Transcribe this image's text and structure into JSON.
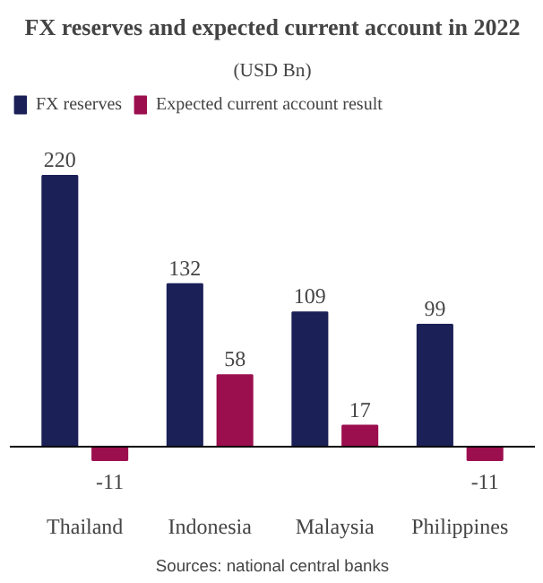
{
  "chart_data": {
    "type": "bar",
    "title": "FX reserves and expected current account in 2022",
    "subtitle": "(USD Bn)",
    "categories": [
      "Thailand",
      "Indonesia",
      "Malaysia",
      "Philippines"
    ],
    "series": [
      {
        "name": "FX reserves",
        "color": "#1b2157",
        "values": [
          220,
          132,
          109,
          99
        ]
      },
      {
        "name": "Expected current account result",
        "color": "#9c0f4f",
        "values": [
          -11,
          58,
          17,
          -11
        ]
      }
    ],
    "data_labels": true,
    "legend": "top left",
    "grid": false,
    "annotations": [
      "Sources: national central banks"
    ]
  }
}
